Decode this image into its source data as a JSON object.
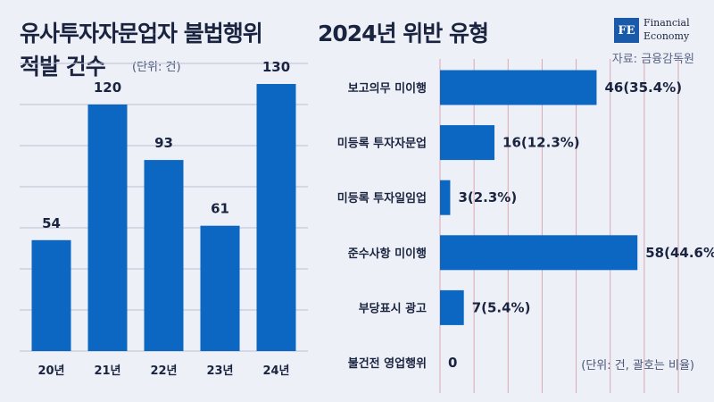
{
  "header": {
    "left_title_line1": "유사투자자문업자 불법행위",
    "left_title_line2": "적발 건수",
    "left_unit": "(단위: 건)",
    "right_title": "2024년 위반 유형",
    "source": "자료: 금융감독원",
    "right_unit": "(단위: 건, 괄호는 비율)"
  },
  "logo": {
    "mark": "FE",
    "line1": "Financial",
    "line2": "Economy"
  },
  "colors": {
    "bar": "#0c67c2",
    "background": "#eef0f7",
    "left_grid": "#b9c0d2",
    "right_grid": "#d9a8b4"
  },
  "chart_data": [
    {
      "type": "bar",
      "title": "유사투자자문업자 불법행위 적발 건수",
      "unit": "(단위: 건)",
      "categories": [
        "20년",
        "21년",
        "22년",
        "23년",
        "24년"
      ],
      "values": [
        54,
        120,
        93,
        61,
        130
      ],
      "ylim": [
        0,
        140
      ],
      "grid": true
    },
    {
      "type": "bar",
      "orientation": "horizontal",
      "title": "2024년 위반 유형",
      "unit": "(단위: 건, 괄호는 비율)",
      "categories": [
        "보고의무 미이행",
        "미등록 투자자문업",
        "미등록 투자일임업",
        "준수사항 미이행",
        "부당표시 광고",
        "불건전 영업행위"
      ],
      "values": [
        46,
        16,
        3,
        58,
        7,
        0
      ],
      "labels": [
        "46(35.4%)",
        "16(12.3%)",
        "3(2.3%)",
        "58(44.6%)",
        "7(5.4%)",
        "0"
      ],
      "xlim": [
        0,
        70
      ],
      "grid": true
    }
  ]
}
